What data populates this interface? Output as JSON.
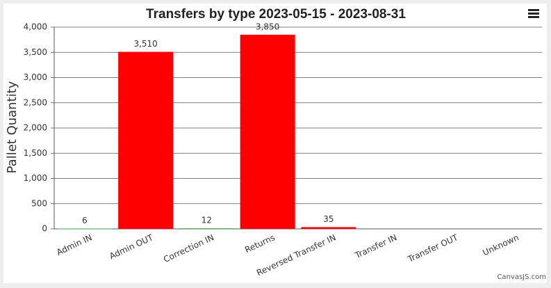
{
  "chart_data": {
    "type": "bar",
    "title": "Transfers by type 2023-05-15 - 2023-08-31",
    "y_label": "Pallet Quantity",
    "categories": [
      "Admin IN",
      "Admin OUT",
      "Correction IN",
      "Returns",
      "Reversed Transfer IN",
      "Transfer IN",
      "Transfer OUT",
      "Unknown"
    ],
    "values": [
      6,
      3510,
      12,
      3850,
      35,
      null,
      null,
      null
    ],
    "value_labels": [
      "6",
      "3,510",
      "12",
      "3,850",
      "35",
      null,
      null,
      null
    ],
    "colors": [
      "#4caf50",
      "#ff0000",
      "#4caf50",
      "#ff0000",
      "#ff0000",
      null,
      null,
      null
    ],
    "ylim": [
      0,
      4000
    ],
    "yticks": [
      0,
      500,
      {
        "value": 1000,
        "label": "1,000"
      },
      {
        "value": 1500,
        "label": "1,500"
      },
      {
        "value": 2000,
        "label": "2,000"
      },
      {
        "value": 2500,
        "label": "2,500"
      },
      {
        "value": 3000,
        "label": "3,000"
      },
      {
        "value": 3500,
        "label": "3,500"
      },
      {
        "value": 4000,
        "label": "4,000"
      }
    ],
    "grid": true,
    "credit": "CanvasJS.com"
  }
}
